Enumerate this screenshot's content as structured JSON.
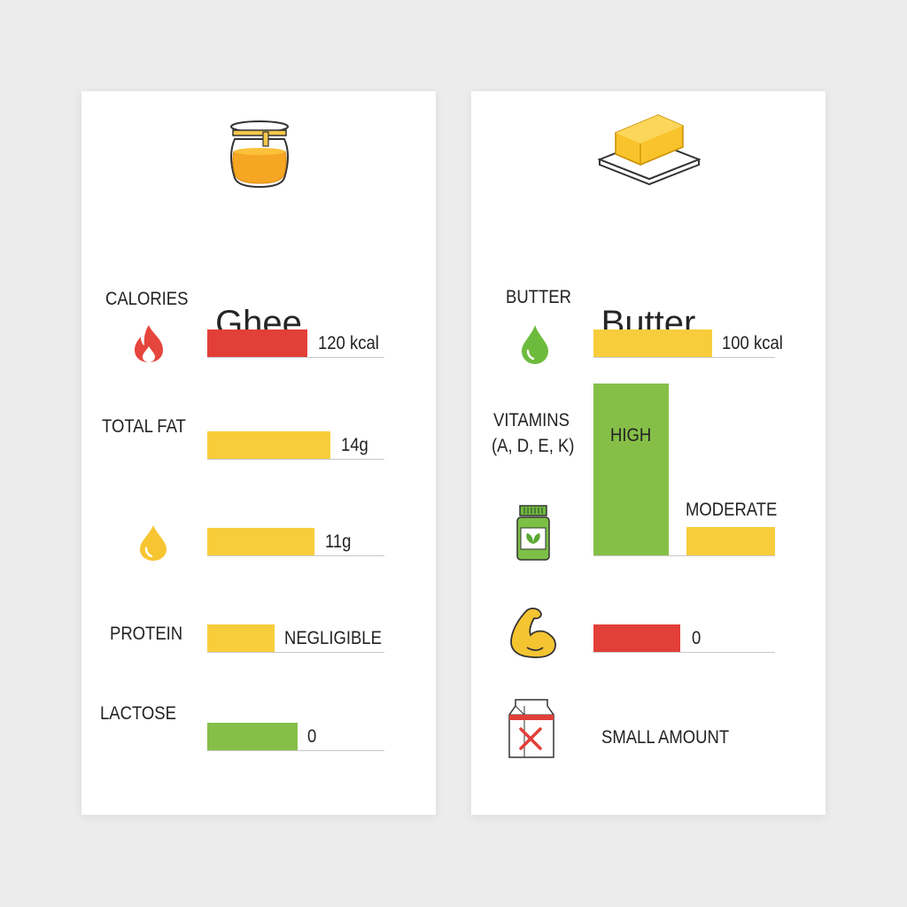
{
  "colors": {
    "red": "#e23f38",
    "yellow": "#f8cd3c",
    "green": "#86bf48",
    "background": "#ececec"
  },
  "ghee": {
    "title": "Ghee",
    "icon": "ghee-jar-icon",
    "rows": [
      {
        "label": "CALORIES",
        "icon": "flame-icon",
        "value": "120 kcal",
        "color": "red",
        "fill": 0.565
      },
      {
        "label": "TOTAL FAT",
        "icon": "",
        "value": "14g",
        "color": "yellow",
        "fill": 0.695
      },
      {
        "label": "",
        "icon": "drop-icon",
        "value": "11g",
        "color": "yellow",
        "fill": 0.605
      },
      {
        "label": "PROTEIN",
        "icon": "",
        "value": "NEGLIGIBLE",
        "color": "yellow",
        "fill": 0.38
      },
      {
        "label": "LACTOSE",
        "icon": "",
        "value": "0",
        "color": "green",
        "fill": 0.51
      }
    ]
  },
  "butter": {
    "title": "Butter",
    "icon": "butter-dish-icon",
    "rows": [
      {
        "label": "BUTTER",
        "icon": "green-drop-icon",
        "value": "100 kcal",
        "color": "yellow",
        "fill": 0.655
      },
      {
        "label_line1": "VITAMINS",
        "label_line2": "(A, D, E, K)",
        "icon": "vitamin-bottle-icon",
        "bars": [
          {
            "value": "HIGH",
            "color": "green",
            "level": 1.0
          },
          {
            "value": "MODERATE",
            "color": "yellow",
            "level": 0.165
          }
        ]
      },
      {
        "label": "",
        "icon": "flexed-bicep-icon",
        "value": "0",
        "color": "red",
        "fill": 0.48
      },
      {
        "label": "",
        "icon": "milk-carton-x-icon",
        "value": "SMALL AMOUNT"
      }
    ]
  },
  "chart_data": [
    {
      "type": "bar",
      "title": "Ghee",
      "orientation": "horizontal",
      "categories": [
        "CALORIES",
        "TOTAL FAT",
        "",
        "PROTEIN",
        "LACTOSE"
      ],
      "data_labels": [
        "120 kcal",
        "14g",
        "11g",
        "NEGLIGIBLE",
        "0"
      ],
      "fill_fraction": [
        0.565,
        0.695,
        0.605,
        0.38,
        0.51
      ],
      "colors": [
        "#e23f38",
        "#f8cd3c",
        "#f8cd3c",
        "#f8cd3c",
        "#86bf48"
      ]
    },
    {
      "type": "bar",
      "title": "Butter",
      "categories": [
        "BUTTER",
        "VITAMINS (A, D, E, K)",
        "",
        ""
      ],
      "data_labels": [
        "100 kcal",
        "HIGH / MODERATE",
        "0",
        "SMALL AMOUNT"
      ]
    }
  ]
}
